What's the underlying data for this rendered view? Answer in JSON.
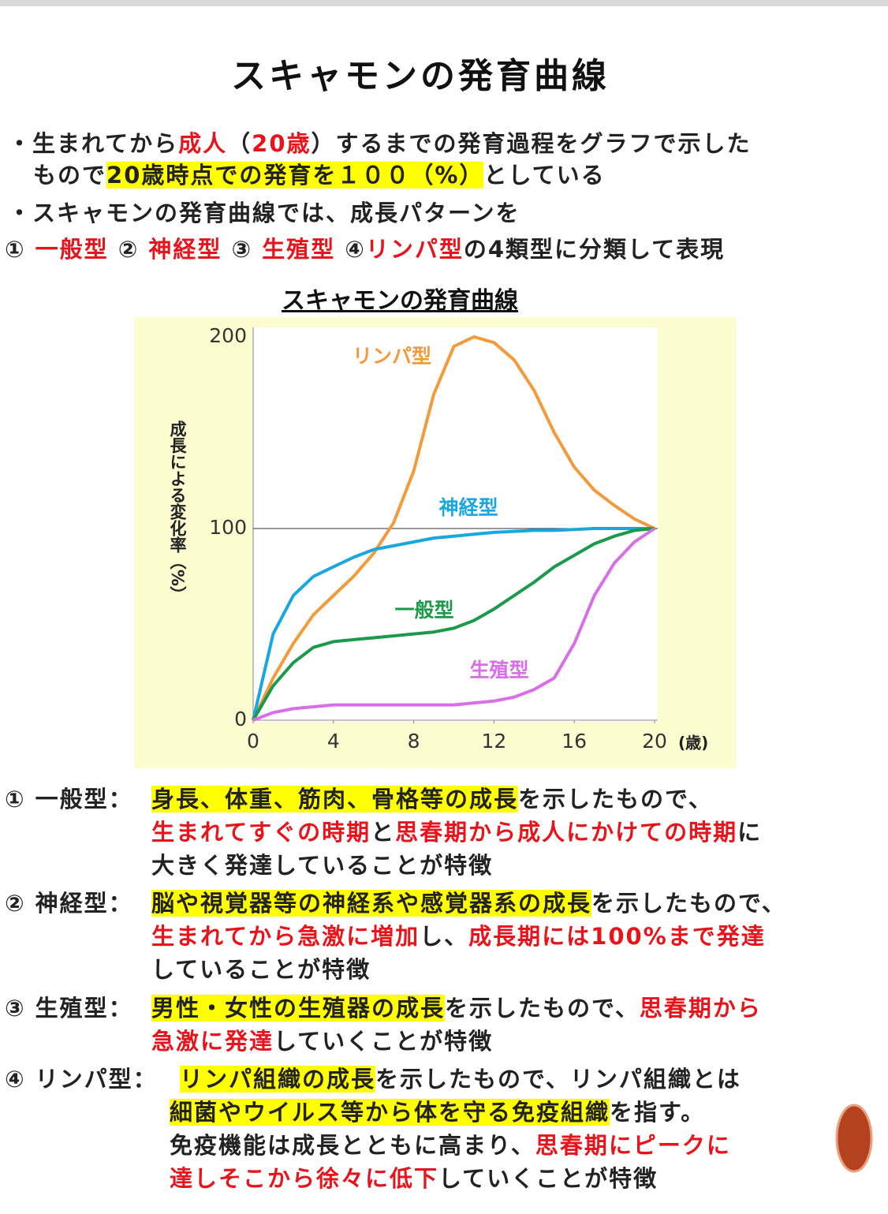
{
  "title": "スキャモンの発育曲線",
  "bullets": [
    [
      {
        "text": "・生まれてから"
      },
      {
        "text": "成人",
        "style": "red"
      },
      {
        "text": "（"
      },
      {
        "text": "20歳",
        "style": "red"
      },
      {
        "text": "）するまでの発育過程をグラフで示した"
      }
    ],
    [
      {
        "text": "もので"
      },
      {
        "text": "20歳時点での発育を１００（%）",
        "style": "hl"
      },
      {
        "text": "としている"
      }
    ],
    [
      {
        "text": "・スキャモンの発育曲線では、成長パターンを"
      }
    ],
    [
      {
        "text": "① "
      },
      {
        "text": "一般型",
        "style": "red"
      },
      {
        "text": " ② "
      },
      {
        "text": "神経型",
        "style": "red"
      },
      {
        "text": " ③ "
      },
      {
        "text": "生殖型",
        "style": "red"
      },
      {
        "text": " ④"
      },
      {
        "text": "リンパ型",
        "style": "red"
      },
      {
        "text": "の4類型に分類して表現"
      }
    ]
  ],
  "chart_data": {
    "type": "line",
    "title": "スキャモンの発育曲線",
    "y_label": "成長による変化率（%）",
    "x_label": "(歳)",
    "x": [
      0,
      1,
      2,
      3,
      4,
      5,
      6,
      7,
      8,
      9,
      10,
      11,
      12,
      13,
      14,
      15,
      16,
      17,
      18,
      19,
      20
    ],
    "xlim": [
      0,
      20
    ],
    "xticks": [
      0,
      4,
      8,
      12,
      16,
      20
    ],
    "ylim": [
      0,
      200
    ],
    "yticks": [
      0,
      100,
      200
    ],
    "hline": 100,
    "series": [
      {
        "name": "リンパ型",
        "color": "#f39a3c",
        "values": [
          0,
          22,
          40,
          55,
          65,
          75,
          87,
          103,
          130,
          170,
          195,
          200,
          197,
          188,
          172,
          150,
          132,
          120,
          112,
          105,
          100
        ]
      },
      {
        "name": "神経型",
        "color": "#1aa7e0",
        "values": [
          0,
          45,
          65,
          75,
          80,
          85,
          89,
          91,
          93,
          95,
          96,
          97,
          98,
          98.5,
          99,
          99,
          99.5,
          100,
          100,
          100,
          100
        ]
      },
      {
        "name": "一般型",
        "color": "#1a9a4a",
        "values": [
          0,
          18,
          30,
          38,
          41,
          42,
          43,
          44,
          45,
          46,
          48,
          52,
          58,
          65,
          72,
          80,
          86,
          92,
          96,
          99,
          100
        ]
      },
      {
        "name": "生殖型",
        "color": "#d86ee8",
        "values": [
          0,
          4,
          6,
          7,
          8,
          8,
          8,
          8,
          8,
          8,
          8,
          9,
          10,
          12,
          16,
          22,
          40,
          65,
          82,
          93,
          100
        ]
      }
    ]
  },
  "descriptions": [
    {
      "label": "① 一般型：",
      "lines": [
        [
          {
            "text": "身長、体重、筋肉、骨格等の成長",
            "style": "hl"
          },
          {
            "text": "を示したもので、"
          }
        ],
        [
          {
            "text": "生まれてすぐの時期",
            "style": "red"
          },
          {
            "text": "と"
          },
          {
            "text": "思春期から成人にかけての時期",
            "style": "red"
          },
          {
            "text": "に"
          }
        ],
        [
          {
            "text": "大きく発達していることが特徴"
          }
        ]
      ]
    },
    {
      "label": "② 神経型：",
      "lines": [
        [
          {
            "text": "脳や視覚器等の神経系や感覚器系の成長",
            "style": "hl"
          },
          {
            "text": "を示したもので、"
          }
        ],
        [
          {
            "text": "生まれてから急激に増加",
            "style": "red"
          },
          {
            "text": "し、"
          },
          {
            "text": "成長期には100%まで発達",
            "style": "red"
          }
        ],
        [
          {
            "text": "していることが特徴"
          }
        ]
      ]
    },
    {
      "label": "③ 生殖型：",
      "lines": [
        [
          {
            "text": "男性・女性の生殖器の成長",
            "style": "hl"
          },
          {
            "text": "を示したもので、"
          },
          {
            "text": "思春期から",
            "style": "red"
          }
        ],
        [
          {
            "text": "急激に発達",
            "style": "red"
          },
          {
            "text": "していくことが特徴"
          }
        ]
      ]
    },
    {
      "label": "④ リンパ型：",
      "lines": [
        [
          {
            "text": "リンパ組織の成長",
            "style": "hl"
          },
          {
            "text": "を示したもので、リンパ組織とは"
          }
        ],
        [
          {
            "text": "細菌やウイルス等から体を守る免疫組織",
            "style": "hl"
          },
          {
            "text": "を指す。"
          }
        ],
        [
          {
            "text": "免疫機能は成長とともに高まり、"
          },
          {
            "text": "思春期にピークに",
            "style": "red"
          }
        ],
        [
          {
            "text": "達しそこから徐々に低下",
            "style": "red"
          },
          {
            "text": "していくことが特徴"
          }
        ]
      ]
    }
  ]
}
